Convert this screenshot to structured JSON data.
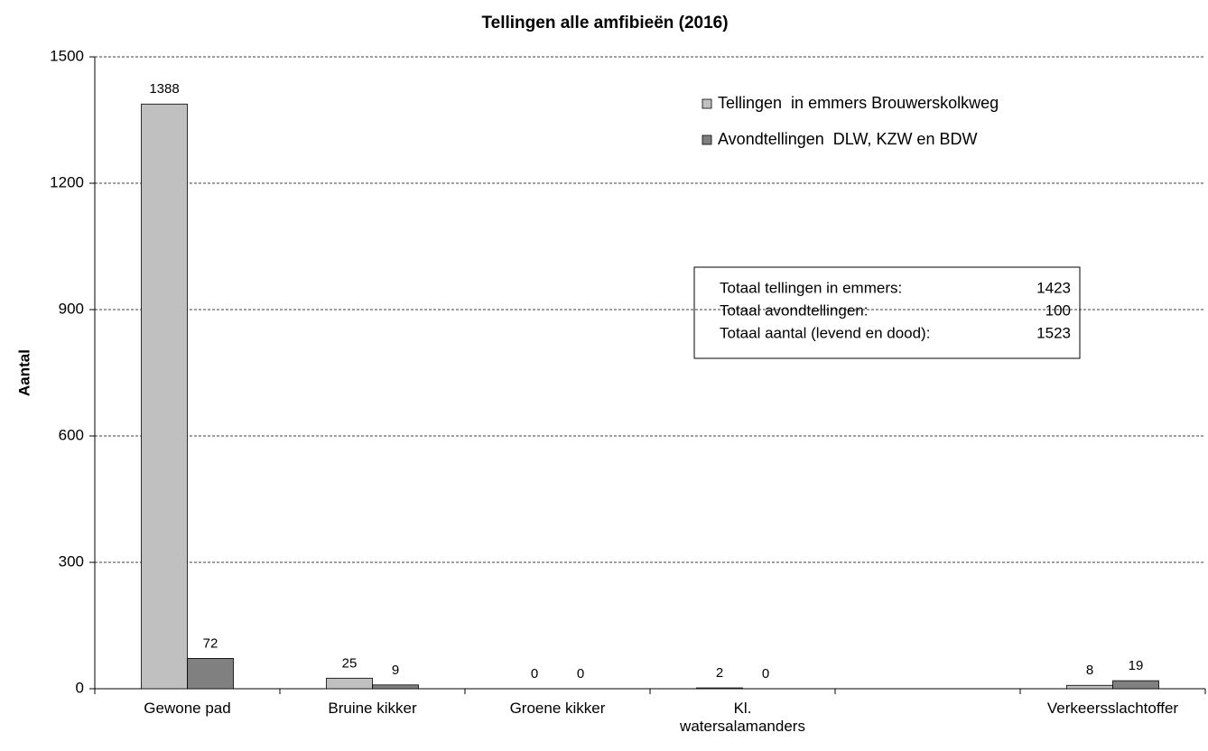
{
  "chart_data": {
    "type": "bar",
    "title": "Tellingen alle amfibieën (2016)",
    "y_label": "Aantal",
    "categories": [
      "Gewone pad",
      "Bruine kikker",
      "Groene kikker",
      "Kl. watersalamanders",
      null,
      "Verkeersslachtoffer"
    ],
    "series": [
      {
        "name": "Tellingen  in emmers Brouwerskolkweg",
        "color": "#c0c0c0",
        "values": [
          1388,
          25,
          0,
          2,
          null,
          8
        ]
      },
      {
        "name": "Avondtellingen  DLW, KZW en BDW",
        "color": "#808080",
        "values": [
          72,
          9,
          0,
          0,
          null,
          19
        ]
      }
    ],
    "ylim": [
      0,
      1500
    ],
    "yticks": [
      0,
      300,
      600,
      900,
      1200,
      1500
    ],
    "grid": true,
    "annotation": [
      {
        "label": "Totaal tellingen in emmers:",
        "value": 1423
      },
      {
        "label": "Totaal avondtellingen:",
        "value": 100
      },
      {
        "label": "Totaal aantal (levend en dood):",
        "value": 1523
      }
    ]
  }
}
